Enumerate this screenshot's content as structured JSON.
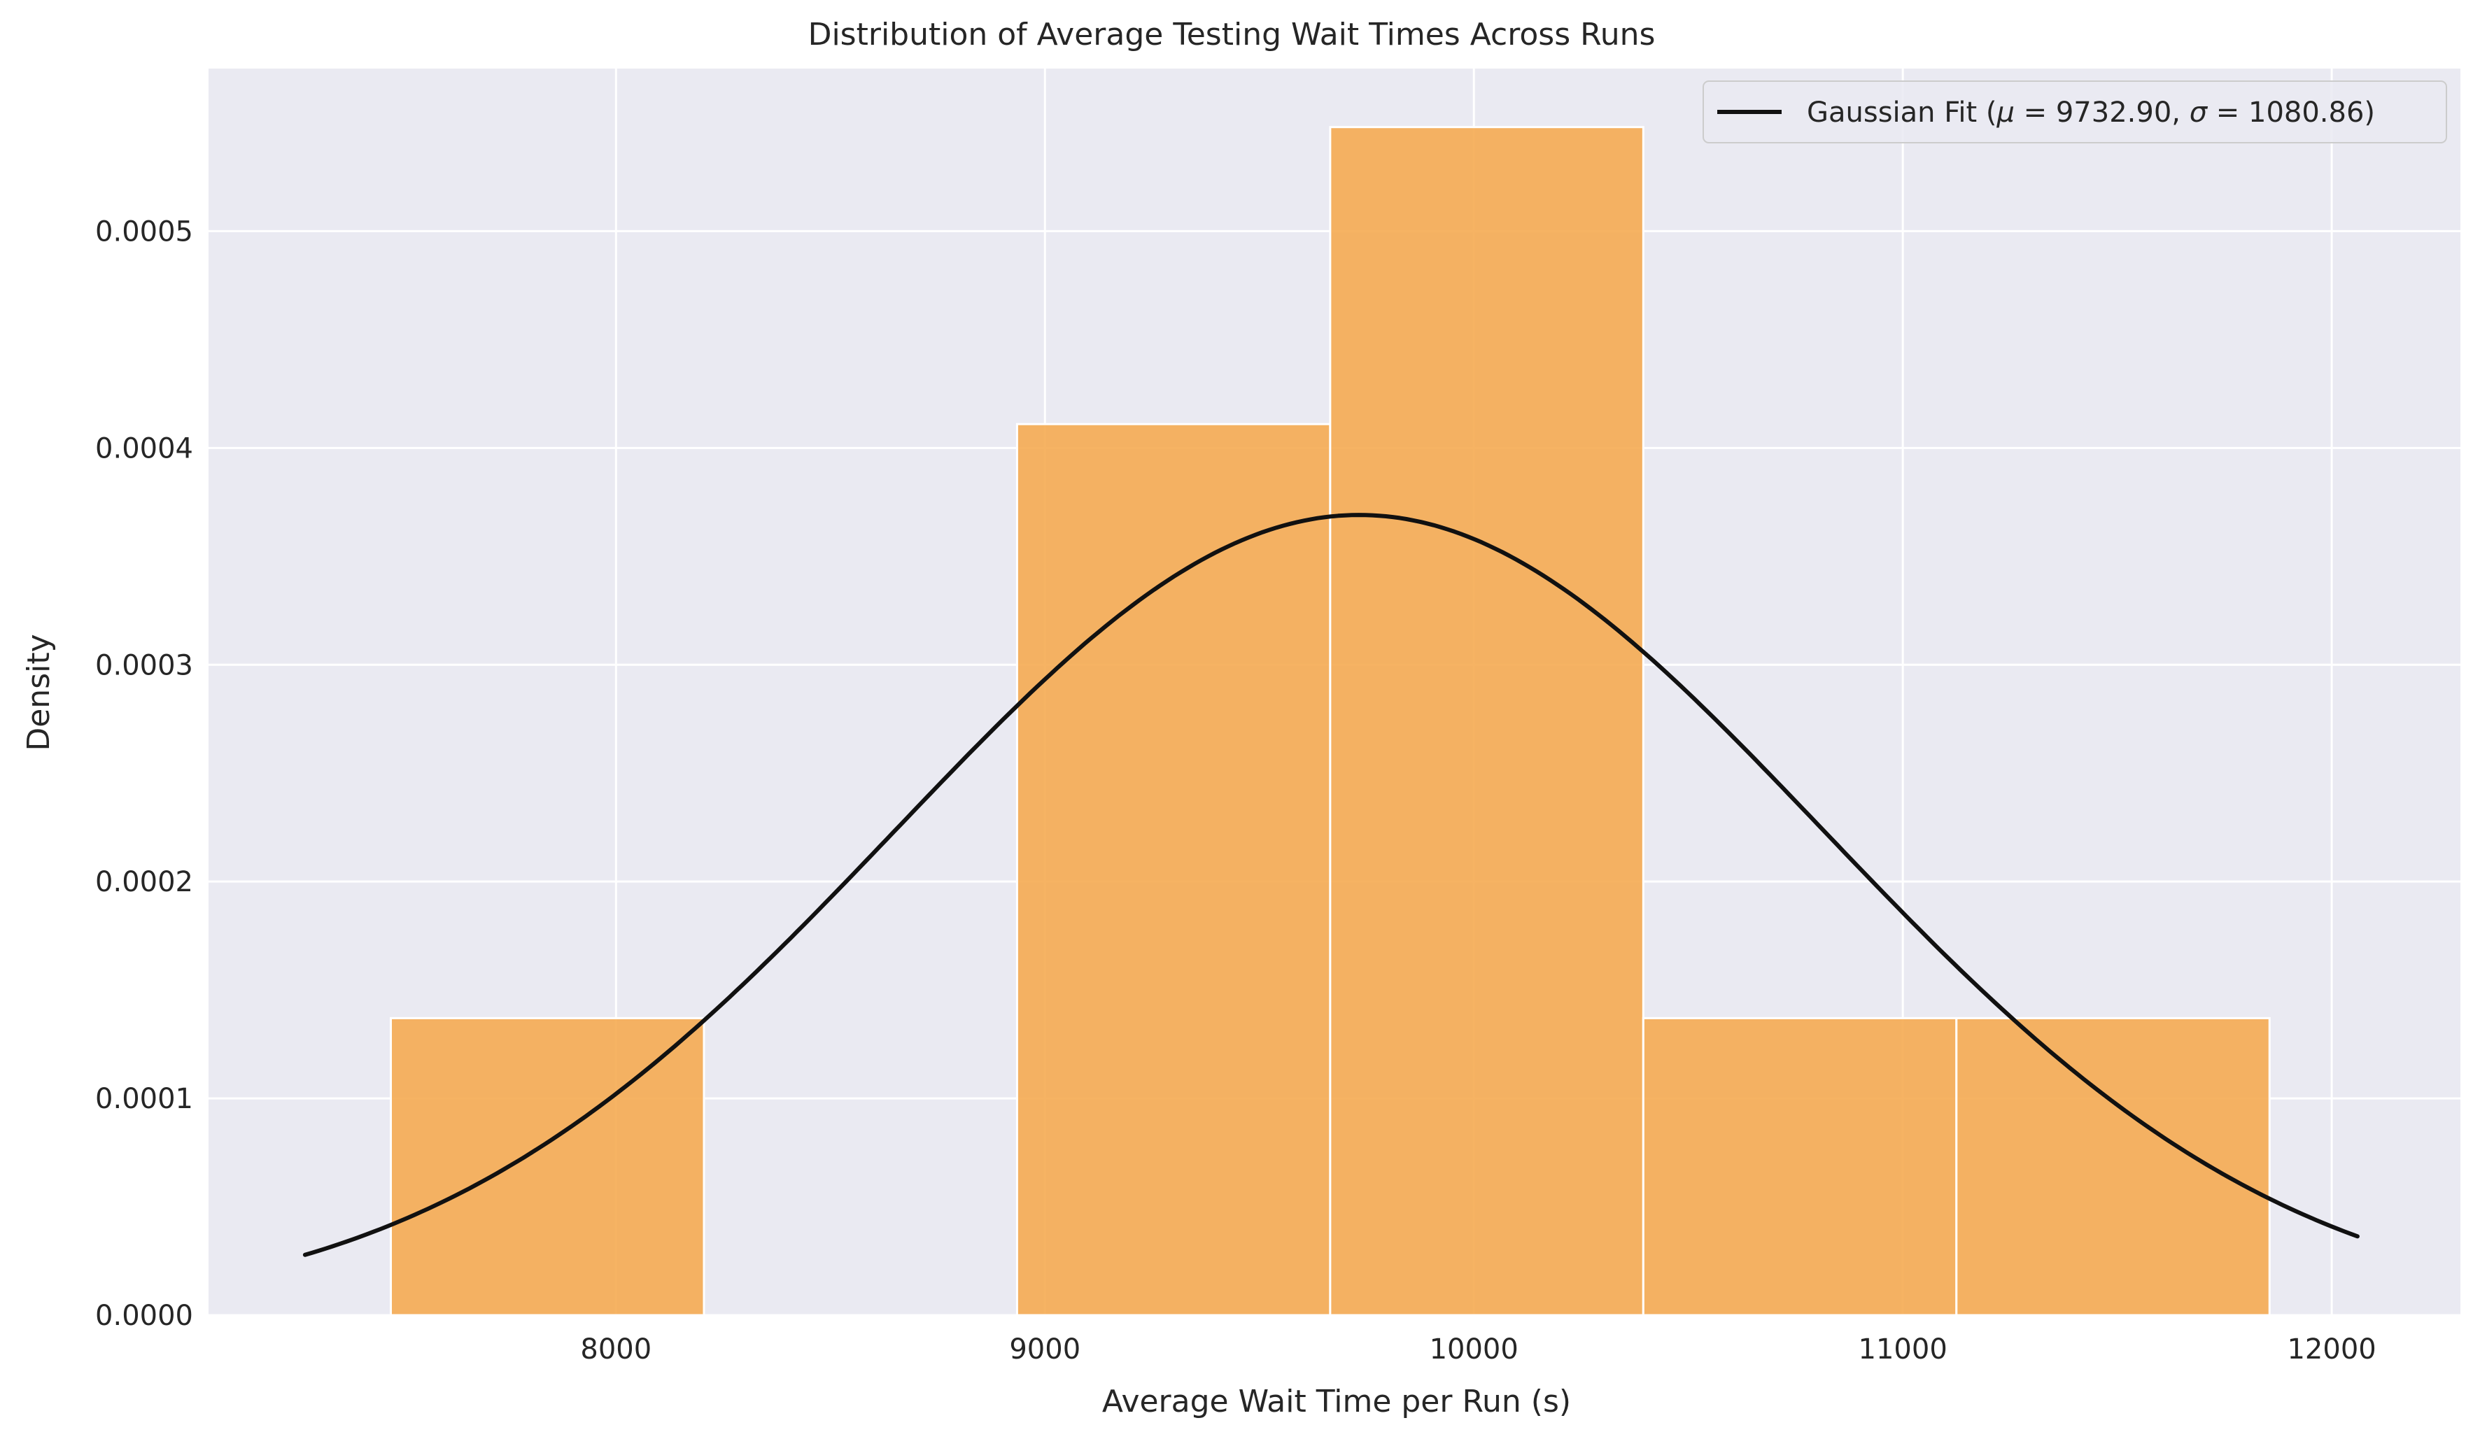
{
  "chart_data": {
    "type": "bar",
    "title": "Distribution of Average Testing Wait Times Across Runs",
    "xlabel": "Average Wait Time per Run (s)",
    "ylabel": "Density",
    "xlim": [
      7050,
      12300
    ],
    "ylim": [
      0,
      0.000575
    ],
    "grid": true,
    "legend_position": "top-right",
    "x_ticks": [
      {
        "value": 8000,
        "label": "8000"
      },
      {
        "value": 9000,
        "label": "9000"
      },
      {
        "value": 10000,
        "label": "10000"
      },
      {
        "value": 11000,
        "label": "11000"
      },
      {
        "value": 12000,
        "label": "12000"
      }
    ],
    "y_ticks": [
      {
        "value": 0,
        "label": "0.0000"
      },
      {
        "value": 0.0001,
        "label": "0.0001"
      },
      {
        "value": 0.0002,
        "label": "0.0002"
      },
      {
        "value": 0.0003,
        "label": "0.0003"
      },
      {
        "value": 0.0004,
        "label": "0.0004"
      },
      {
        "value": 0.0005,
        "label": "0.0005"
      }
    ],
    "histogram": {
      "bins": [
        {
          "x0": 7475,
          "x1": 8205,
          "density": 0.000137
        },
        {
          "x0": 8205,
          "x1": 8935,
          "density": 0
        },
        {
          "x0": 8935,
          "x1": 9665,
          "density": 0.000411
        },
        {
          "x0": 9665,
          "x1": 10395,
          "density": 0.000548
        },
        {
          "x0": 10395,
          "x1": 11125,
          "density": 0.000137
        },
        {
          "x0": 11125,
          "x1": 11855,
          "density": 0.000137
        }
      ],
      "color": "#f5a94d"
    },
    "series": [
      {
        "name": "Gaussian Fit (μ = 9732.90, σ = 1080.86)",
        "type": "line",
        "mu": 9732.9,
        "sigma": 1080.86,
        "x_range": [
          7275,
          12060
        ],
        "color": "#111111"
      }
    ],
    "legend": {
      "label_prefix": "Gaussian Fit (",
      "mu_symbol": "μ",
      "mu_value": " = 9732.90, ",
      "sigma_symbol": "σ",
      "sigma_value": " = 1080.86)"
    }
  }
}
